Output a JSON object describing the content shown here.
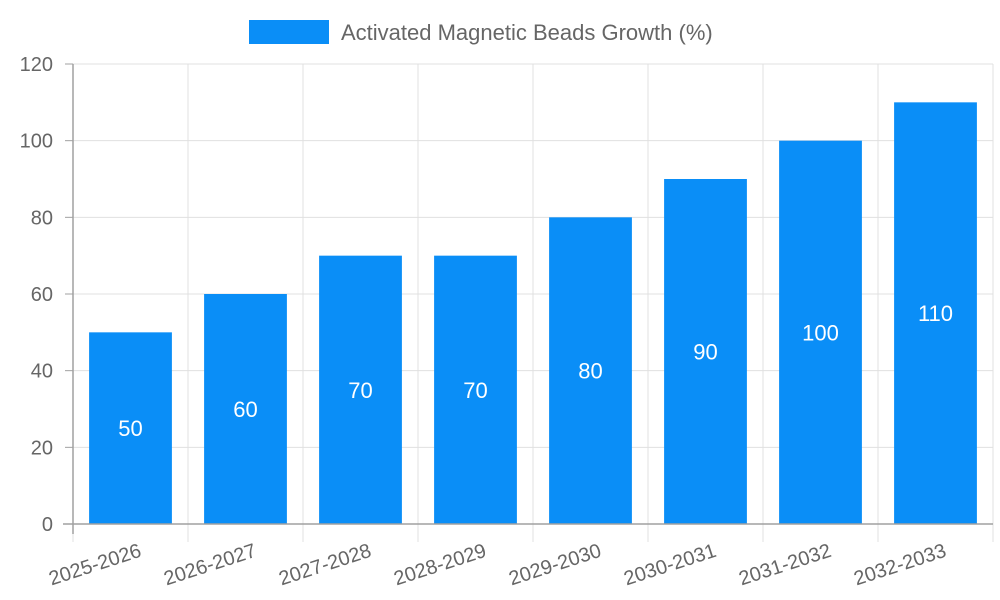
{
  "chart_data": {
    "type": "bar",
    "title": "",
    "xlabel": "",
    "ylabel": "",
    "categories": [
      "2025-2026",
      "2026-2027",
      "2027-2028",
      "2028-2029",
      "2029-2030",
      "2030-2031",
      "2031-2032",
      "2032-2033"
    ],
    "series": [
      {
        "name": "Activated Magnetic Beads Growth (%)",
        "color": "#0a8ef7",
        "values": [
          50,
          60,
          70,
          70,
          80,
          90,
          100,
          110
        ]
      }
    ],
    "ylim": [
      0,
      120
    ],
    "yticks": [
      0,
      20,
      40,
      60,
      80,
      100,
      120
    ],
    "grid": true,
    "legend_position": "top",
    "data_labels": true
  },
  "legend": {
    "label": "Activated Magnetic Beads Growth (%)",
    "color": "#0a8ef7"
  },
  "colors": {
    "bar": "#0a8ef7",
    "grid": "#e0e0e0",
    "axis": "#a0a0a0",
    "text": "#666666"
  }
}
